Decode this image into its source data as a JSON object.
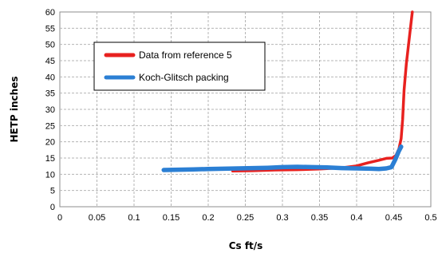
{
  "chart_data": {
    "type": "line",
    "title": "",
    "xlabel": "Cs ft/s",
    "ylabel": "HETP inches",
    "xlim": [
      0,
      0.5
    ],
    "ylim": [
      0,
      60
    ],
    "x_ticks": [
      "0",
      "0.05",
      "0.1",
      "0.15",
      "0.2",
      "0.25",
      "0.3",
      "0.35",
      "0.4",
      "0.45",
      "0.5"
    ],
    "y_ticks": [
      "0",
      "5",
      "10",
      "15",
      "20",
      "25",
      "30",
      "35",
      "40",
      "45",
      "50",
      "55",
      "60"
    ],
    "grid": true,
    "legend_position": "upper-left",
    "series": [
      {
        "name": "Data from reference 5",
        "color": "#e8211f",
        "points": [
          [
            0.233,
            11.0
          ],
          [
            0.26,
            11.1
          ],
          [
            0.29,
            11.3
          ],
          [
            0.32,
            11.4
          ],
          [
            0.35,
            11.6
          ],
          [
            0.38,
            12.0
          ],
          [
            0.4,
            12.6
          ],
          [
            0.415,
            13.5
          ],
          [
            0.43,
            14.3
          ],
          [
            0.44,
            14.9
          ],
          [
            0.448,
            15.0
          ],
          [
            0.453,
            15.8
          ],
          [
            0.457,
            17.8
          ],
          [
            0.46,
            21.0
          ],
          [
            0.462,
            27.0
          ],
          [
            0.464,
            36.0
          ],
          [
            0.467,
            44.0
          ],
          [
            0.47,
            50.0
          ],
          [
            0.473,
            56.0
          ],
          [
            0.475,
            60.0
          ]
        ]
      },
      {
        "name": "Koch-Glitsch packing",
        "color": "#2b7fd4",
        "points": [
          [
            0.14,
            11.3
          ],
          [
            0.16,
            11.4
          ],
          [
            0.18,
            11.5
          ],
          [
            0.2,
            11.6
          ],
          [
            0.22,
            11.7
          ],
          [
            0.24,
            11.8
          ],
          [
            0.26,
            11.9
          ],
          [
            0.28,
            12.0
          ],
          [
            0.3,
            12.2
          ],
          [
            0.32,
            12.3
          ],
          [
            0.34,
            12.2
          ],
          [
            0.36,
            12.1
          ],
          [
            0.38,
            11.9
          ],
          [
            0.4,
            11.8
          ],
          [
            0.42,
            11.7
          ],
          [
            0.43,
            11.6
          ],
          [
            0.44,
            11.8
          ],
          [
            0.447,
            12.2
          ],
          [
            0.452,
            14.5
          ],
          [
            0.457,
            17.2
          ],
          [
            0.46,
            18.5
          ]
        ]
      }
    ]
  }
}
